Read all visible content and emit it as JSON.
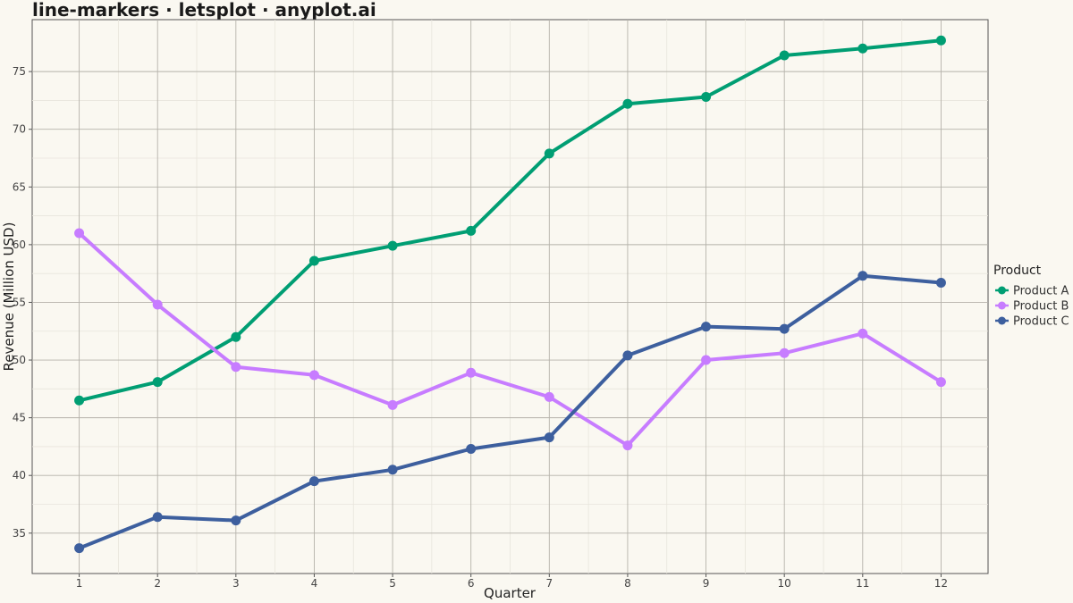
{
  "chart_data": {
    "type": "line",
    "title": "line-markers · letsplot · anyplot.ai",
    "xlabel": "Quarter",
    "ylabel": "Revenue (Million USD)",
    "x": [
      1,
      2,
      3,
      4,
      5,
      6,
      7,
      8,
      9,
      10,
      11,
      12
    ],
    "xlim": [
      0.4,
      12.6
    ],
    "ylim": [
      31.5,
      79.5
    ],
    "y_ticks": [
      35,
      40,
      45,
      50,
      55,
      60,
      65,
      70,
      75
    ],
    "grid": true,
    "legend": {
      "title": "Product",
      "position": "right"
    },
    "series": [
      {
        "name": "Product A",
        "color": "#009e73",
        "values": [
          46.5,
          48.1,
          52.0,
          58.6,
          59.9,
          61.2,
          67.9,
          72.2,
          72.8,
          76.4,
          77.0,
          77.7
        ]
      },
      {
        "name": "Product B",
        "color": "#c77cff",
        "values": [
          61.0,
          54.8,
          49.4,
          48.7,
          46.1,
          48.9,
          46.8,
          42.6,
          50.0,
          50.6,
          52.3,
          48.1
        ]
      },
      {
        "name": "Product C",
        "color": "#3d5f9e",
        "values": [
          33.7,
          36.4,
          36.1,
          39.5,
          40.5,
          42.3,
          43.3,
          50.4,
          52.9,
          52.7,
          57.3,
          56.7
        ]
      }
    ]
  }
}
